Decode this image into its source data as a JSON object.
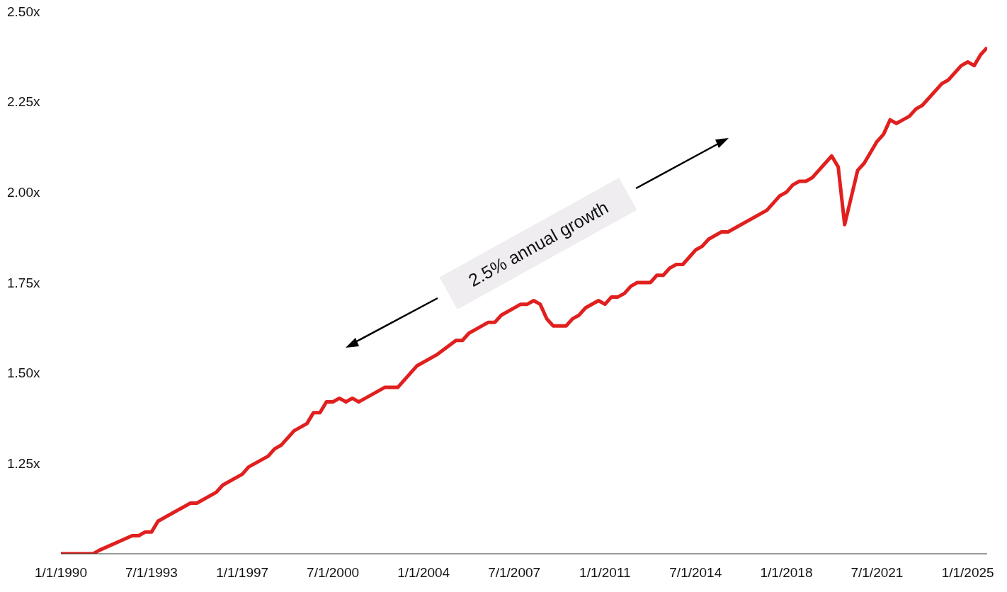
{
  "chart_data": {
    "type": "line",
    "color": "#e0201f",
    "marker": "none",
    "line_style": "solid",
    "x": [
      "1990-01",
      "1990-10",
      "1991-04",
      "1991-07",
      "1992-10",
      "1993-01",
      "1993-04",
      "1993-07",
      "1993-10",
      "1995-01",
      "1995-04",
      "1996-01",
      "1996-04",
      "1997-01",
      "1997-04",
      "1998-01",
      "1998-04",
      "1998-07",
      "1999-01",
      "1999-07",
      "1999-10",
      "2000-01",
      "2000-04",
      "2000-07",
      "2000-10",
      "2001-01",
      "2001-04",
      "2001-07",
      "2002-07",
      "2003-01",
      "2003-10",
      "2004-07",
      "2005-04",
      "2005-07",
      "2005-10",
      "2006-01",
      "2006-07",
      "2006-10",
      "2007-01",
      "2007-10",
      "2008-01",
      "2008-04",
      "2008-07",
      "2008-10",
      "2009-01",
      "2009-07",
      "2009-10",
      "2010-01",
      "2010-04",
      "2010-10",
      "2011-01",
      "2011-04",
      "2011-07",
      "2011-10",
      "2012-01",
      "2012-04",
      "2012-10",
      "2013-01",
      "2013-04",
      "2013-07",
      "2013-10",
      "2014-01",
      "2014-07",
      "2014-10",
      "2015-01",
      "2015-07",
      "2015-10",
      "2017-04",
      "2017-10",
      "2018-01",
      "2018-04",
      "2018-07",
      "2018-10",
      "2019-01",
      "2019-10",
      "2020-01",
      "2020-04",
      "2020-10",
      "2021-01",
      "2021-07",
      "2021-10",
      "2022-01",
      "2022-04",
      "2022-10",
      "2023-01",
      "2023-04",
      "2024-01",
      "2024-04",
      "2024-10",
      "2025-01",
      "2025-04",
      "2025-07",
      "2025-10"
    ],
    "values": [
      1.0,
      1.0,
      1.0,
      1.01,
      1.05,
      1.05,
      1.06,
      1.06,
      1.09,
      1.14,
      1.14,
      1.17,
      1.19,
      1.22,
      1.24,
      1.27,
      1.29,
      1.3,
      1.34,
      1.36,
      1.39,
      1.39,
      1.42,
      1.42,
      1.43,
      1.42,
      1.43,
      1.42,
      1.46,
      1.46,
      1.52,
      1.55,
      1.59,
      1.59,
      1.61,
      1.62,
      1.64,
      1.64,
      1.66,
      1.69,
      1.69,
      1.7,
      1.69,
      1.65,
      1.63,
      1.63,
      1.65,
      1.66,
      1.68,
      1.7,
      1.69,
      1.71,
      1.71,
      1.72,
      1.74,
      1.75,
      1.75,
      1.77,
      1.77,
      1.79,
      1.8,
      1.8,
      1.84,
      1.85,
      1.87,
      1.89,
      1.89,
      1.95,
      1.99,
      2.0,
      2.02,
      2.03,
      2.03,
      2.04,
      2.1,
      2.07,
      1.91,
      2.06,
      2.08,
      2.14,
      2.16,
      2.2,
      2.19,
      2.21,
      2.23,
      2.24,
      2.3,
      2.31,
      2.35,
      2.36,
      2.35,
      2.38,
      2.4
    ],
    "xlim": [
      "1990-01-01",
      "2025-10-01"
    ],
    "xticks": [
      {
        "value": "1990-01-01",
        "label": "1/1/1990"
      },
      {
        "value": "1993-07-01",
        "label": "7/1/1993"
      },
      {
        "value": "1997-01-01",
        "label": "1/1/1997"
      },
      {
        "value": "2000-07-01",
        "label": "7/1/2000"
      },
      {
        "value": "2004-01-01",
        "label": "1/1/2004"
      },
      {
        "value": "2007-07-01",
        "label": "7/1/2007"
      },
      {
        "value": "2011-01-01",
        "label": "1/1/2011"
      },
      {
        "value": "2014-07-01",
        "label": "7/1/2014"
      },
      {
        "value": "2018-01-01",
        "label": "1/1/2018"
      },
      {
        "value": "2021-07-01",
        "label": "7/1/2021"
      },
      {
        "value": "2025-01-01",
        "label": "1/1/2025"
      }
    ],
    "ylim": [
      1,
      2.5
    ],
    "yticks": [
      {
        "value": 1,
        "label": null
      },
      {
        "value": 1.25,
        "label": "1.25x"
      },
      {
        "value": 1.5,
        "label": "1.50x"
      },
      {
        "value": 1.75,
        "label": "1.75x"
      },
      {
        "value": 2,
        "label": "2.00x"
      },
      {
        "value": 2.25,
        "label": "2.25x"
      },
      {
        "value": 2.5,
        "label": "2.50x"
      }
    ],
    "annotations": [
      "2.5% annual growth"
    ]
  }
}
